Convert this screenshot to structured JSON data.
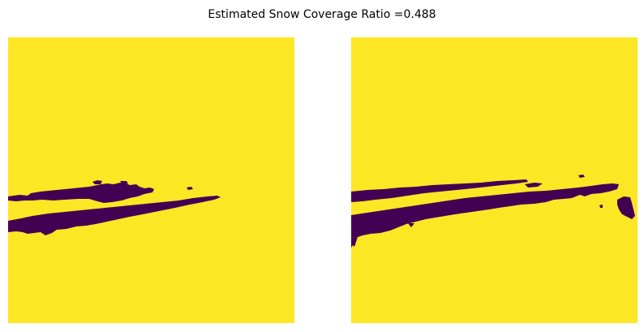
{
  "figure": {
    "title": "Estimated Snow Coverage Ratio =0.488"
  },
  "colors": {
    "snow": "#FDE725",
    "non_snow": "#440154",
    "background": "#FFFFFF"
  },
  "panels": [
    {
      "id": "left",
      "type": "binary-snow-mask",
      "axes": "off"
    },
    {
      "id": "right",
      "type": "binary-snow-mask",
      "axes": "off"
    }
  ]
}
